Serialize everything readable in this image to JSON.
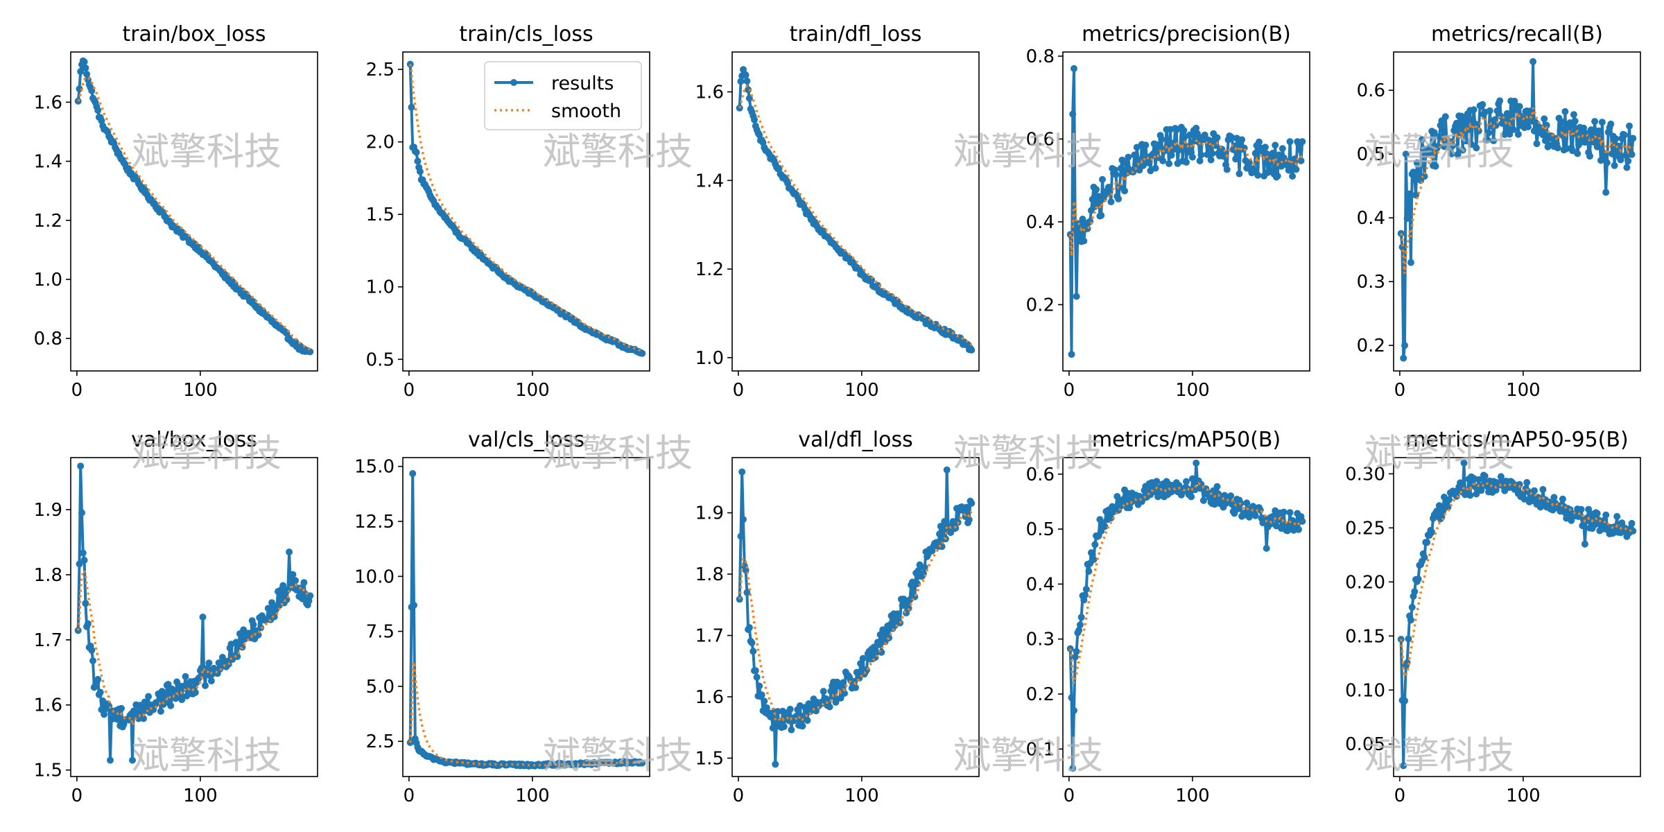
{
  "figure": {
    "legend": {
      "results_label": "results",
      "smooth_label": "smooth"
    },
    "watermark": "斌擎科技",
    "colors": {
      "results": "#1f77b4",
      "smooth": "#ff7f0e",
      "watermark": "#b4b4b4"
    }
  },
  "chart_data": [
    {
      "type": "line",
      "title": "train/box_loss",
      "xlim": [
        -5,
        195
      ],
      "ylim": [
        0.69,
        1.77
      ],
      "xticks": [
        0,
        100
      ],
      "xtick_labels": [
        "0",
        "100"
      ],
      "yticks": [
        0.8,
        1.0,
        1.2,
        1.4,
        1.6
      ],
      "ytick_labels": [
        "0.8",
        "1.0",
        "1.2",
        "1.4",
        "1.6"
      ],
      "anchors": [
        [
          1,
          1.6
        ],
        [
          3,
          1.7
        ],
        [
          4,
          1.73
        ],
        [
          6,
          1.74
        ],
        [
          10,
          1.66
        ],
        [
          20,
          1.53
        ],
        [
          40,
          1.38
        ],
        [
          60,
          1.27
        ],
        [
          80,
          1.17
        ],
        [
          100,
          1.1
        ],
        [
          120,
          1.01
        ],
        [
          140,
          0.93
        ],
        [
          160,
          0.85
        ],
        [
          180,
          0.77
        ],
        [
          188,
          0.75
        ]
      ],
      "noise": 0.008,
      "spikes": [],
      "show_legend": false
    },
    {
      "type": "line",
      "title": "train/cls_loss",
      "xlim": [
        -5,
        195
      ],
      "ylim": [
        0.42,
        2.62
      ],
      "xticks": [
        0,
        100
      ],
      "xtick_labels": [
        "0",
        "100"
      ],
      "yticks": [
        0.5,
        1.0,
        1.5,
        2.0,
        2.5
      ],
      "ytick_labels": [
        "0.5",
        "1.0",
        "1.5",
        "2.0",
        "2.5"
      ],
      "anchors": [
        [
          1,
          2.53
        ],
        [
          3,
          1.97
        ],
        [
          6,
          1.92
        ],
        [
          10,
          1.75
        ],
        [
          20,
          1.58
        ],
        [
          40,
          1.36
        ],
        [
          60,
          1.2
        ],
        [
          80,
          1.05
        ],
        [
          100,
          0.95
        ],
        [
          120,
          0.84
        ],
        [
          140,
          0.73
        ],
        [
          160,
          0.64
        ],
        [
          188,
          0.54
        ]
      ],
      "noise": 0.012,
      "spikes": [],
      "show_legend": true
    },
    {
      "type": "line",
      "title": "train/dfl_loss",
      "xlim": [
        -5,
        195
      ],
      "ylim": [
        0.97,
        1.69
      ],
      "xticks": [
        0,
        100
      ],
      "xtick_labels": [
        "0",
        "100"
      ],
      "yticks": [
        1.0,
        1.2,
        1.4,
        1.6
      ],
      "ytick_labels": [
        "1.0",
        "1.2",
        "1.4",
        "1.6"
      ],
      "anchors": [
        [
          1,
          1.56
        ],
        [
          2,
          1.62
        ],
        [
          4,
          1.65
        ],
        [
          6,
          1.64
        ],
        [
          10,
          1.56
        ],
        [
          20,
          1.48
        ],
        [
          40,
          1.39
        ],
        [
          60,
          1.31
        ],
        [
          80,
          1.25
        ],
        [
          100,
          1.19
        ],
        [
          120,
          1.14
        ],
        [
          140,
          1.1
        ],
        [
          160,
          1.07
        ],
        [
          180,
          1.04
        ],
        [
          188,
          1.02
        ]
      ],
      "noise": 0.006,
      "spikes": [],
      "show_legend": false
    },
    {
      "type": "line",
      "title": "metrics/precision(B)",
      "xlim": [
        -5,
        195
      ],
      "ylim": [
        0.04,
        0.81
      ],
      "xticks": [
        0,
        100
      ],
      "xtick_labels": [
        "0",
        "100"
      ],
      "yticks": [
        0.2,
        0.4,
        0.6,
        0.8
      ],
      "ytick_labels": [
        "0.2",
        "0.4",
        "0.6",
        "0.8"
      ],
      "anchors": [
        [
          1,
          0.34
        ],
        [
          10,
          0.38
        ],
        [
          20,
          0.44
        ],
        [
          40,
          0.5
        ],
        [
          60,
          0.55
        ],
        [
          80,
          0.58
        ],
        [
          100,
          0.59
        ],
        [
          120,
          0.57
        ],
        [
          140,
          0.56
        ],
        [
          160,
          0.55
        ],
        [
          188,
          0.55
        ]
      ],
      "noise": 0.045,
      "spikes": [
        [
          2,
          0.08
        ],
        [
          3,
          0.66
        ],
        [
          4,
          0.77
        ],
        [
          6,
          0.22
        ]
      ],
      "show_legend": false
    },
    {
      "type": "line",
      "title": "metrics/recall(B)",
      "xlim": [
        -5,
        195
      ],
      "ylim": [
        0.16,
        0.66
      ],
      "xticks": [
        0,
        100
      ],
      "xtick_labels": [
        "0",
        "100"
      ],
      "yticks": [
        0.2,
        0.3,
        0.4,
        0.5,
        0.6
      ],
      "ytick_labels": [
        "0.2",
        "0.3",
        "0.4",
        "0.5",
        "0.6"
      ],
      "anchors": [
        [
          1,
          0.35
        ],
        [
          10,
          0.45
        ],
        [
          20,
          0.5
        ],
        [
          40,
          0.53
        ],
        [
          60,
          0.54
        ],
        [
          80,
          0.55
        ],
        [
          100,
          0.55
        ],
        [
          120,
          0.54
        ],
        [
          140,
          0.53
        ],
        [
          160,
          0.52
        ],
        [
          188,
          0.51
        ]
      ],
      "noise": 0.035,
      "spikes": [
        [
          3,
          0.18
        ],
        [
          4,
          0.2
        ],
        [
          5,
          0.5
        ],
        [
          9,
          0.33
        ],
        [
          108,
          0.645
        ],
        [
          167,
          0.44
        ]
      ],
      "show_legend": false
    },
    {
      "type": "line",
      "title": "val/box_loss",
      "xlim": [
        -5,
        195
      ],
      "ylim": [
        1.49,
        1.98
      ],
      "xticks": [
        0,
        100
      ],
      "xtick_labels": [
        "0",
        "100"
      ],
      "yticks": [
        1.5,
        1.6,
        1.7,
        1.8,
        1.9
      ],
      "ytick_labels": [
        "1.5",
        "1.6",
        "1.7",
        "1.8",
        "1.9"
      ],
      "anchors": [
        [
          1,
          1.7
        ],
        [
          3,
          1.955
        ],
        [
          5,
          1.85
        ],
        [
          8,
          1.72
        ],
        [
          15,
          1.63
        ],
        [
          25,
          1.59
        ],
        [
          40,
          1.58
        ],
        [
          60,
          1.6
        ],
        [
          80,
          1.62
        ],
        [
          100,
          1.64
        ],
        [
          120,
          1.67
        ],
        [
          140,
          1.71
        ],
        [
          160,
          1.75
        ],
        [
          175,
          1.79
        ],
        [
          188,
          1.77
        ]
      ],
      "noise": 0.018,
      "spikes": [
        [
          27,
          1.515
        ],
        [
          45,
          1.515
        ],
        [
          102,
          1.735
        ],
        [
          172,
          1.835
        ]
      ],
      "show_legend": false
    },
    {
      "type": "line",
      "title": "val/cls_loss",
      "xlim": [
        -5,
        195
      ],
      "ylim": [
        0.9,
        15.4
      ],
      "xticks": [
        0,
        100
      ],
      "xtick_labels": [
        "0",
        "100"
      ],
      "yticks": [
        2.5,
        5.0,
        7.5,
        10.0,
        12.5,
        15.0
      ],
      "ytick_labels": [
        "2.5",
        "5.0",
        "7.5",
        "10.0",
        "12.5",
        "15.0"
      ],
      "anchors": [
        [
          1,
          2.4
        ],
        [
          3,
          14.7
        ],
        [
          5,
          2.6
        ],
        [
          8,
          2.1
        ],
        [
          15,
          1.8
        ],
        [
          30,
          1.55
        ],
        [
          60,
          1.45
        ],
        [
          100,
          1.42
        ],
        [
          140,
          1.48
        ],
        [
          188,
          1.55
        ]
      ],
      "noise": 0.05,
      "spikes": [],
      "show_legend": false
    },
    {
      "type": "line",
      "title": "val/dfl_loss",
      "xlim": [
        -5,
        195
      ],
      "ylim": [
        1.47,
        1.99
      ],
      "xticks": [
        0,
        100
      ],
      "xtick_labels": [
        "0",
        "100"
      ],
      "yticks": [
        1.5,
        1.6,
        1.7,
        1.8,
        1.9
      ],
      "ytick_labels": [
        "1.5",
        "1.6",
        "1.7",
        "1.8",
        "1.9"
      ],
      "anchors": [
        [
          1,
          1.74
        ],
        [
          3,
          1.96
        ],
        [
          5,
          1.82
        ],
        [
          8,
          1.72
        ],
        [
          15,
          1.62
        ],
        [
          25,
          1.57
        ],
        [
          40,
          1.56
        ],
        [
          60,
          1.58
        ],
        [
          80,
          1.61
        ],
        [
          100,
          1.64
        ],
        [
          120,
          1.7
        ],
        [
          140,
          1.77
        ],
        [
          160,
          1.85
        ],
        [
          175,
          1.89
        ],
        [
          188,
          1.9
        ]
      ],
      "noise": 0.02,
      "spikes": [
        [
          30,
          1.49
        ],
        [
          169,
          1.97
        ]
      ],
      "show_legend": false
    },
    {
      "type": "line",
      "title": "metrics/mAP50(B)",
      "xlim": [
        -5,
        195
      ],
      "ylim": [
        0.05,
        0.63
      ],
      "xticks": [
        0,
        100
      ],
      "xtick_labels": [
        "0",
        "100"
      ],
      "yticks": [
        0.1,
        0.2,
        0.3,
        0.4,
        0.5,
        0.6
      ],
      "ytick_labels": [
        "0.1",
        "0.2",
        "0.3",
        "0.4",
        "0.5",
        "0.6"
      ],
      "anchors": [
        [
          1,
          0.3
        ],
        [
          3,
          0.08
        ],
        [
          5,
          0.25
        ],
        [
          8,
          0.33
        ],
        [
          15,
          0.42
        ],
        [
          25,
          0.5
        ],
        [
          40,
          0.55
        ],
        [
          60,
          0.565
        ],
        [
          80,
          0.575
        ],
        [
          100,
          0.575
        ],
        [
          120,
          0.56
        ],
        [
          140,
          0.54
        ],
        [
          160,
          0.52
        ],
        [
          188,
          0.51
        ]
      ],
      "noise": 0.018,
      "spikes": [
        [
          4,
          0.17
        ],
        [
          103,
          0.62
        ],
        [
          160,
          0.465
        ]
      ],
      "show_legend": false
    },
    {
      "type": "line",
      "title": "metrics/mAP50-95(B)",
      "xlim": [
        -5,
        195
      ],
      "ylim": [
        0.02,
        0.315
      ],
      "xticks": [
        0,
        100
      ],
      "xtick_labels": [
        "0",
        "100"
      ],
      "yticks": [
        0.05,
        0.1,
        0.15,
        0.2,
        0.25,
        0.3
      ],
      "ytick_labels": [
        "0.05",
        "0.10",
        "0.15",
        "0.20",
        "0.25",
        "0.30"
      ],
      "anchors": [
        [
          1,
          0.155
        ],
        [
          3,
          0.03
        ],
        [
          5,
          0.12
        ],
        [
          8,
          0.16
        ],
        [
          15,
          0.21
        ],
        [
          25,
          0.25
        ],
        [
          40,
          0.28
        ],
        [
          60,
          0.29
        ],
        [
          80,
          0.29
        ],
        [
          100,
          0.285
        ],
        [
          120,
          0.275
        ],
        [
          140,
          0.265
        ],
        [
          160,
          0.255
        ],
        [
          188,
          0.25
        ]
      ],
      "noise": 0.009,
      "spikes": [
        [
          4,
          0.09
        ],
        [
          52,
          0.31
        ],
        [
          150,
          0.235
        ]
      ],
      "show_legend": false
    }
  ]
}
